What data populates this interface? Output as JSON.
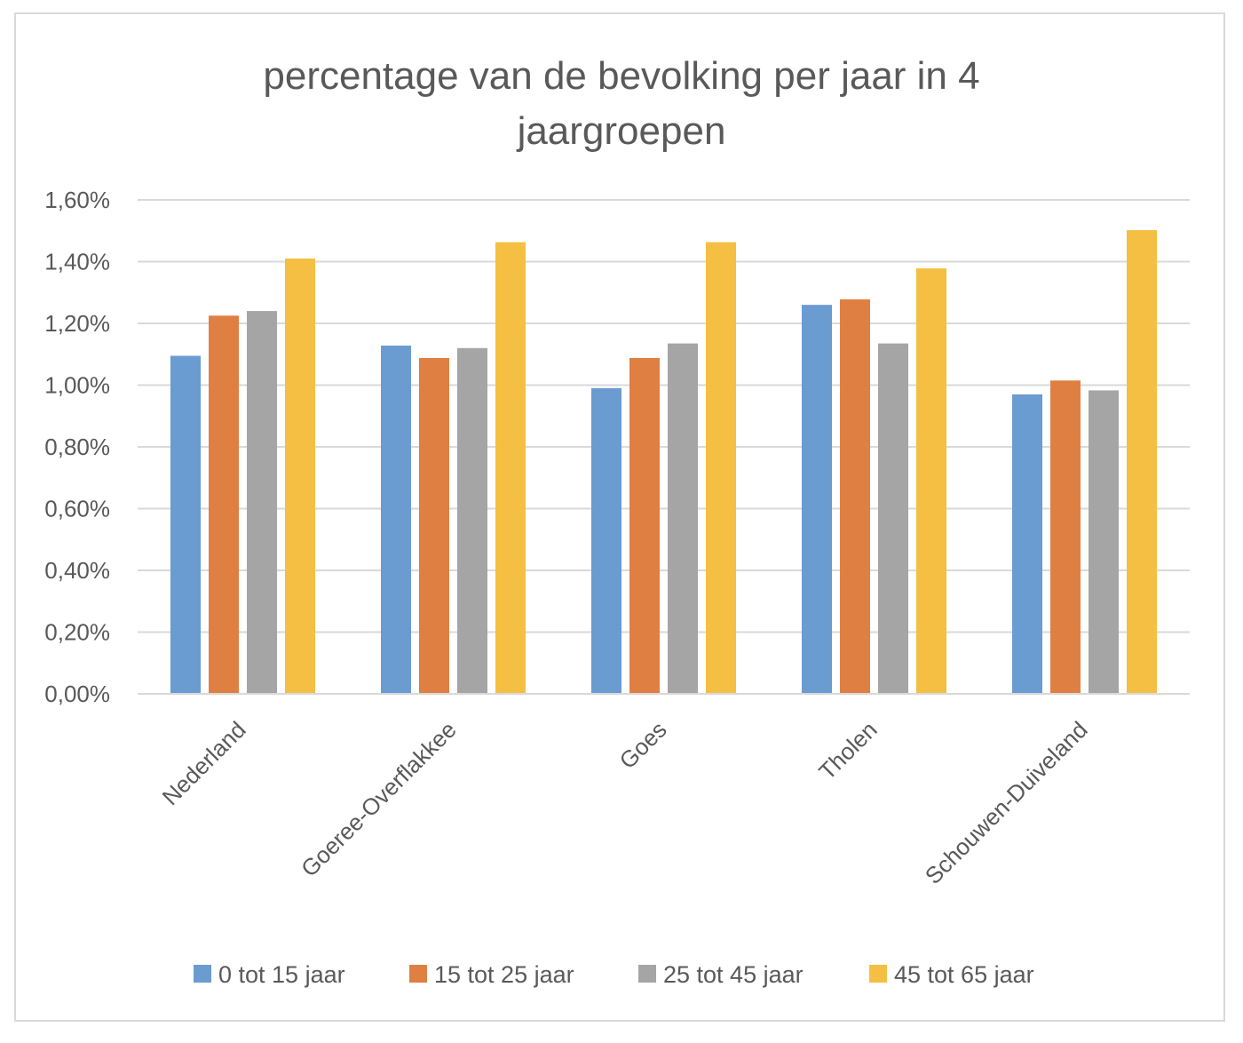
{
  "chart_data": {
    "type": "bar",
    "title": "percentage van de bevolking per jaar in 4 jaargroepen",
    "title_lines": [
      "percentage van de bevolking per jaar in 4",
      "jaargroepen"
    ],
    "xlabel": "",
    "ylabel": "",
    "ylim": [
      0,
      0.016
    ],
    "yticks": [
      0,
      0.002,
      0.004,
      0.006,
      0.008,
      0.01,
      0.012,
      0.014,
      0.016
    ],
    "ytick_labels": [
      "0,00%",
      "0,20%",
      "0,40%",
      "0,60%",
      "0,80%",
      "1,00%",
      "1,20%",
      "1,40%",
      "1,60%"
    ],
    "grid": true,
    "legend_position": "bottom",
    "categories": [
      "Nederland",
      "Goeree-Overflakkee",
      "Goes",
      "Tholen",
      "Schouwen-Duiveland"
    ],
    "series": [
      {
        "name": "0 tot 15 jaar",
        "color": "#6a9bd1",
        "values": [
          0.01095,
          0.01128,
          0.0099,
          0.0126,
          0.0097
        ]
      },
      {
        "name": "15 tot 25 jaar",
        "color": "#e07f42",
        "values": [
          0.01225,
          0.01088,
          0.01088,
          0.01278,
          0.01015
        ]
      },
      {
        "name": "25 tot 45 jaar",
        "color": "#a5a5a5",
        "values": [
          0.0124,
          0.0112,
          0.01135,
          0.01135,
          0.00983
        ]
      },
      {
        "name": "45 tot 65 jaar",
        "color": "#f4bf42",
        "values": [
          0.0141,
          0.01463,
          0.01463,
          0.01378,
          0.01502
        ]
      }
    ]
  }
}
